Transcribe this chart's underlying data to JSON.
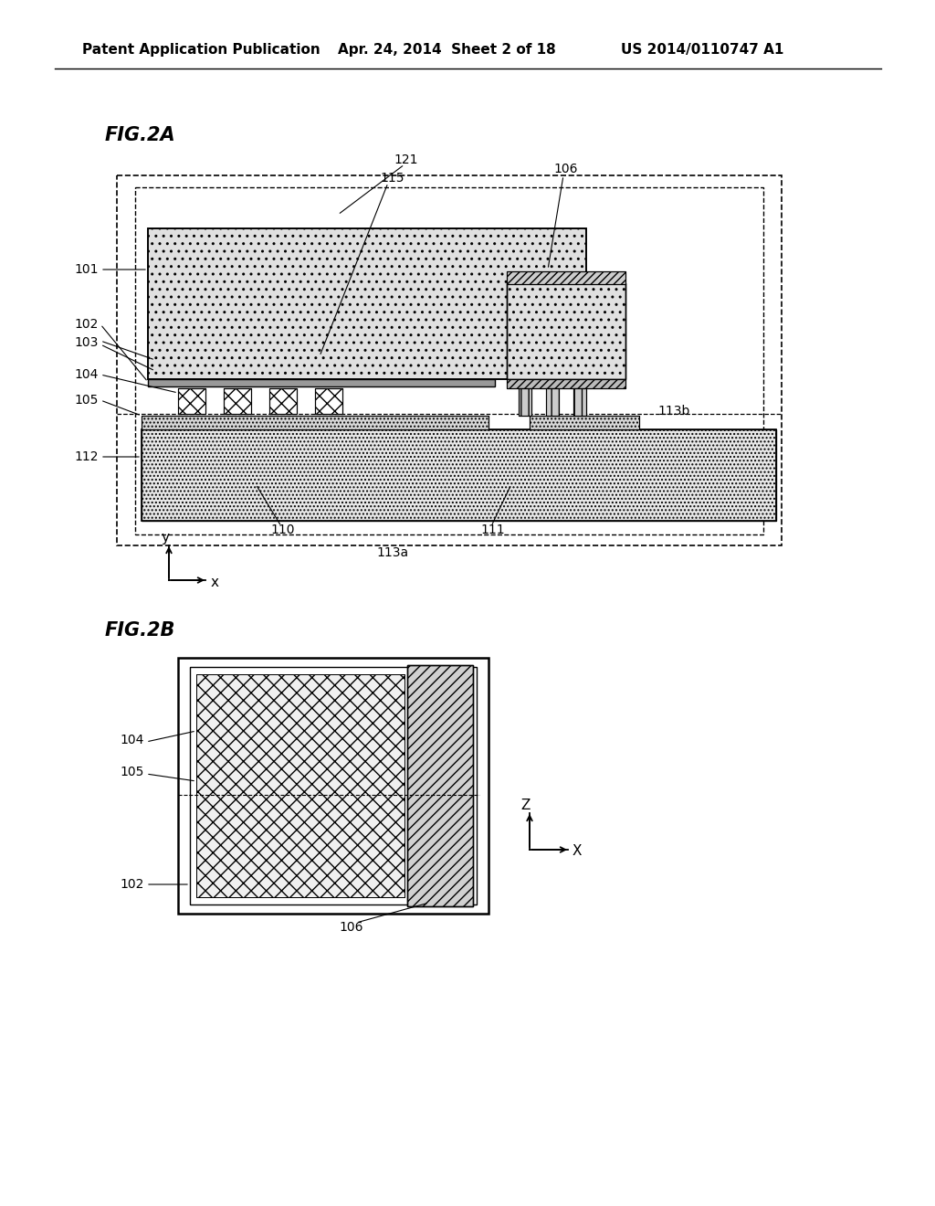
{
  "header_left": "Patent Application Publication",
  "header_mid": "Apr. 24, 2014  Sheet 2 of 18",
  "header_right": "US 2014/0110747 A1",
  "fig2a_label": "FIG.2A",
  "fig2b_label": "FIG.2B",
  "bg_color": "#ffffff"
}
